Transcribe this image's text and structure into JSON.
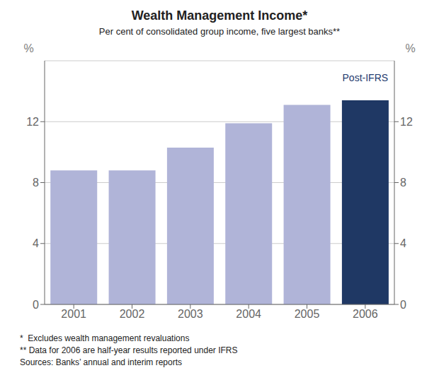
{
  "chart_data": {
    "type": "bar",
    "title": "Wealth Management Income*",
    "subtitle": "Per cent of consolidated group income, five largest banks**",
    "categories": [
      "2001",
      "2002",
      "2003",
      "2004",
      "2005",
      "2006"
    ],
    "values": [
      8.8,
      8.8,
      10.3,
      11.9,
      13.1,
      13.4
    ],
    "colors": [
      "#b0b4d8",
      "#b0b4d8",
      "#b0b4d8",
      "#b0b4d8",
      "#b0b4d8",
      "#1f3864"
    ],
    "ylabel": "%",
    "y2label": "%",
    "ylim": [
      0,
      16
    ],
    "yticks": [
      0,
      4,
      8,
      12
    ],
    "y2lim": [
      0,
      16
    ],
    "y2ticks": [
      0,
      4,
      8,
      12
    ],
    "grid": true,
    "annotations": [
      {
        "text": "Post-IFRS",
        "x": "2006",
        "y": 14.9,
        "color": "#1f3a6e"
      }
    ],
    "footnotes": [
      "*  Excludes wealth management revaluations",
      "** Data for 2006 are half-year results reported under IFRS",
      "Sources: Banks’ annual and interim reports"
    ]
  }
}
